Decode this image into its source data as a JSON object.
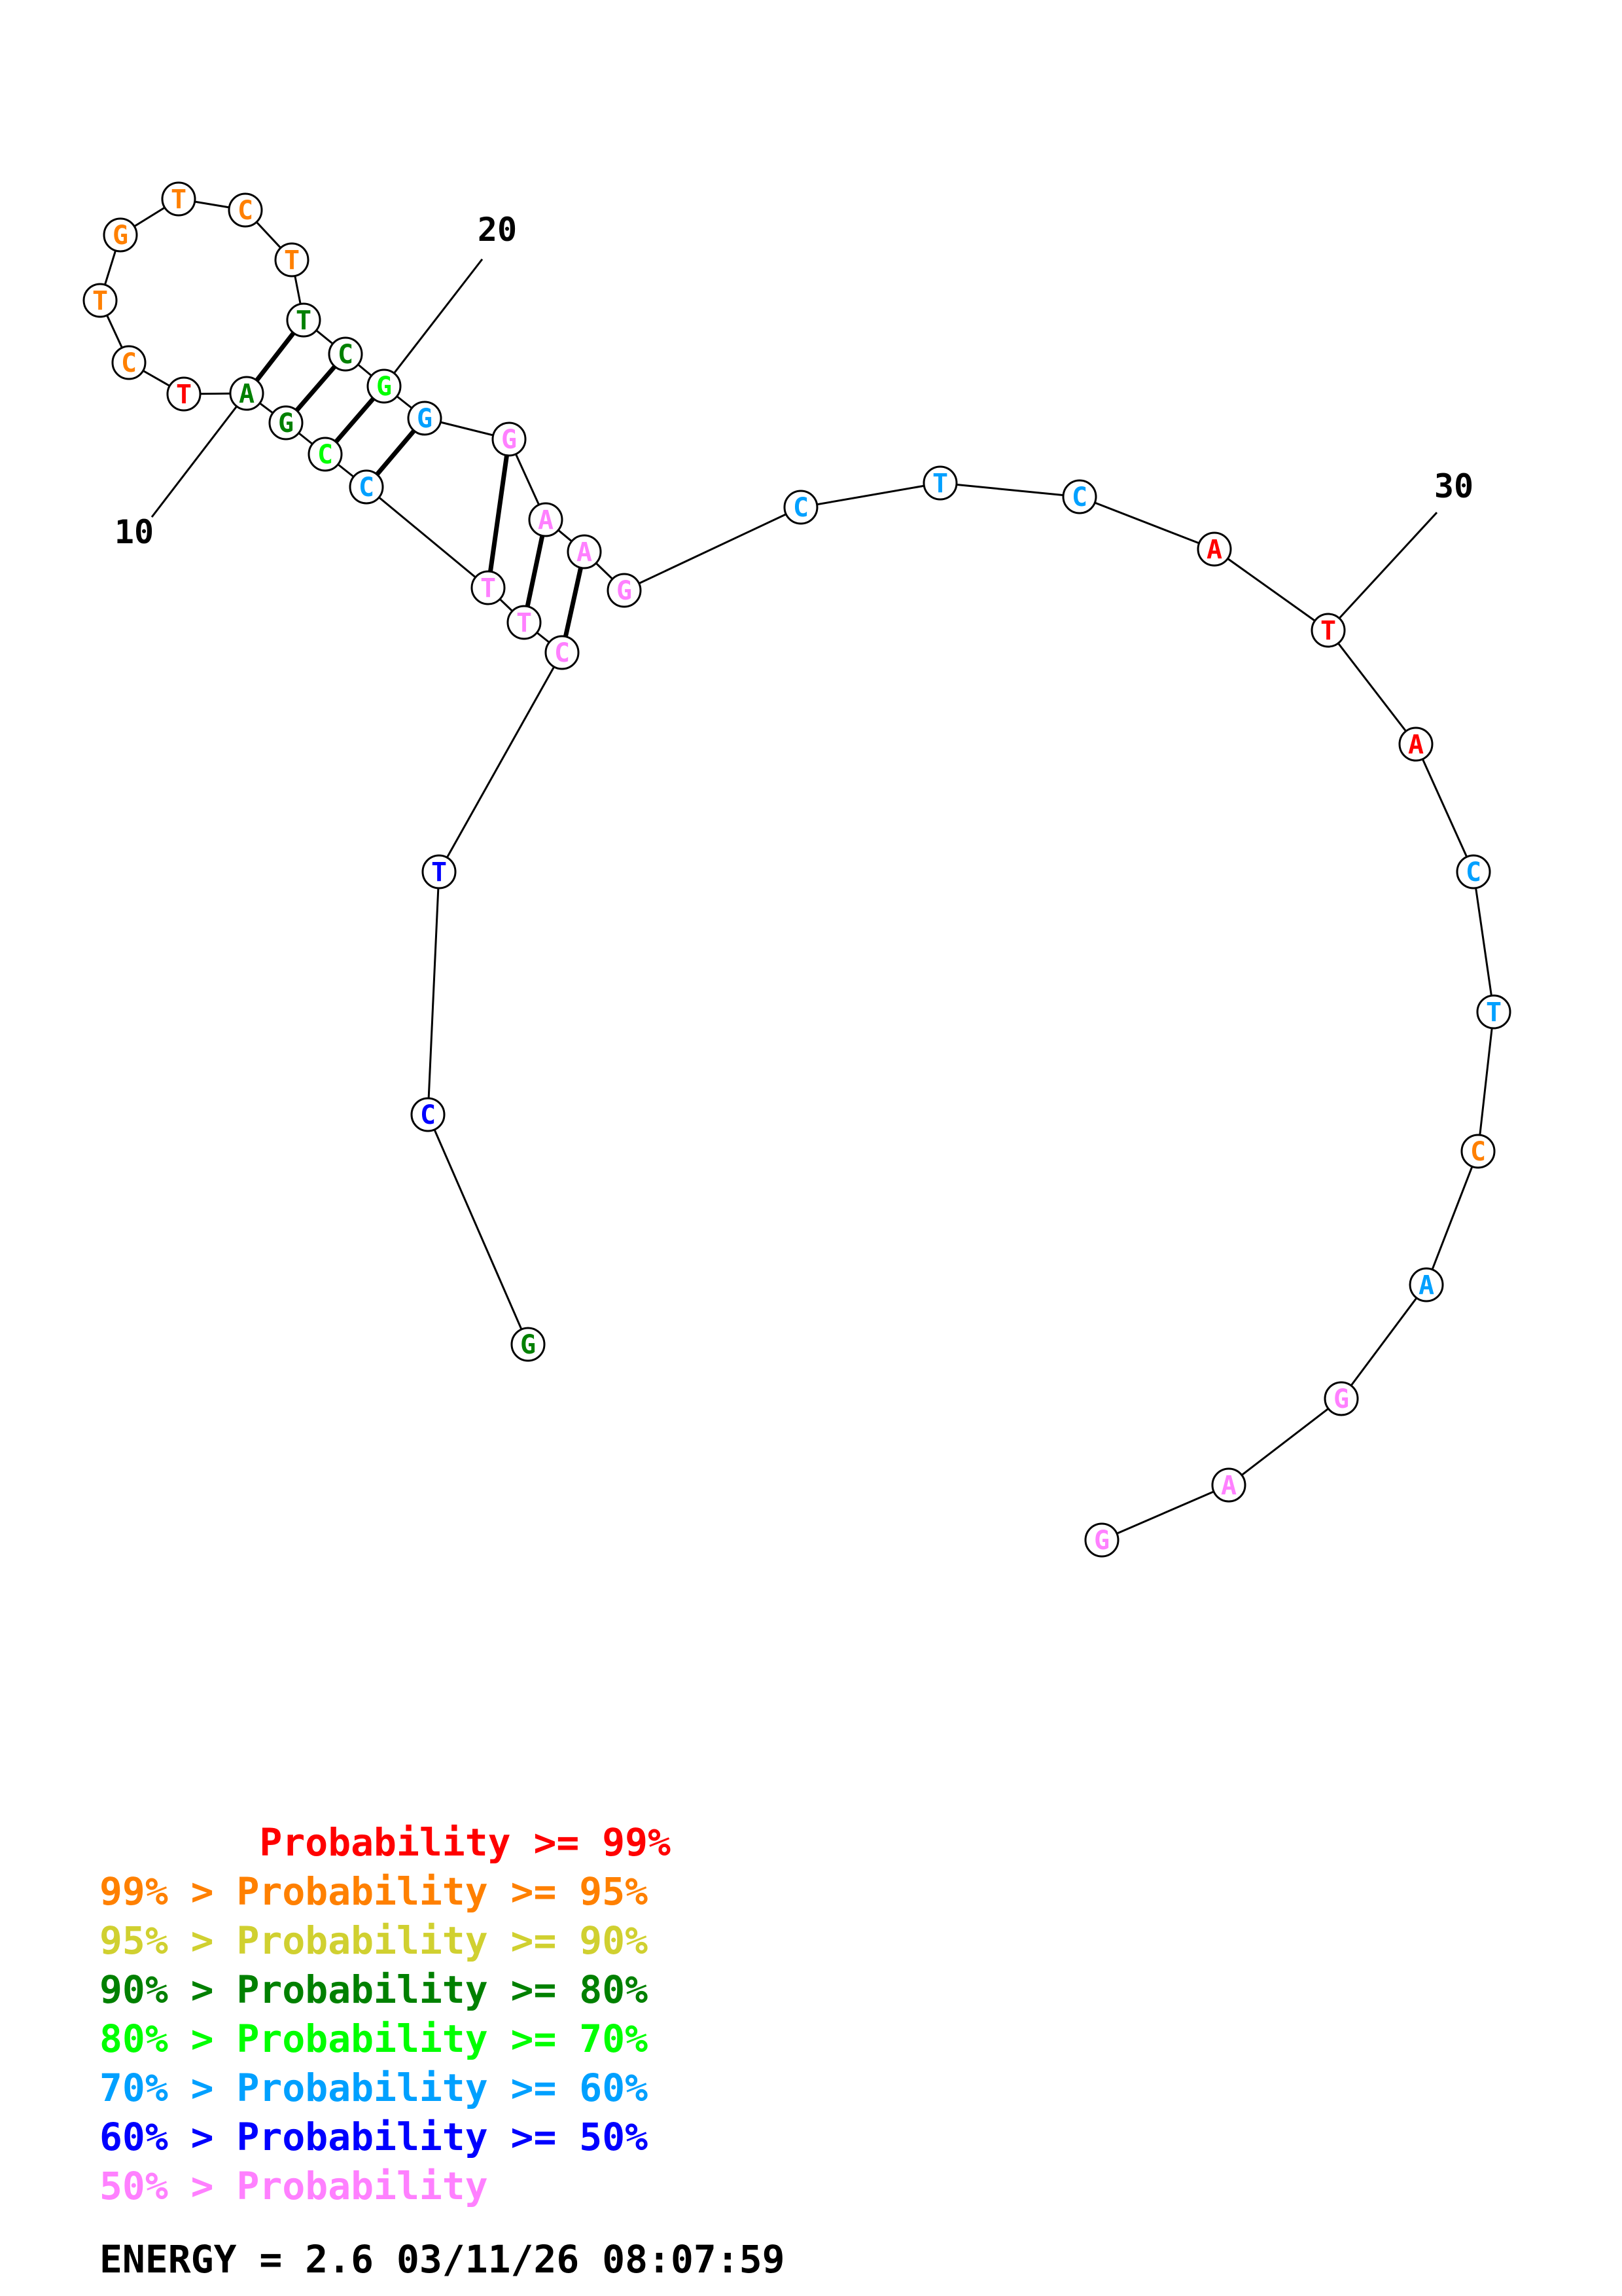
{
  "structure": {
    "bases": [
      {
        "n": 1,
        "letter": "G",
        "tier": 3
      },
      {
        "n": 2,
        "letter": "C",
        "tier": 6
      },
      {
        "n": 3,
        "letter": "T",
        "tier": 6
      },
      {
        "n": 4,
        "letter": "C",
        "tier": 7
      },
      {
        "n": 5,
        "letter": "T",
        "tier": 7
      },
      {
        "n": 6,
        "letter": "T",
        "tier": 7
      },
      {
        "n": 7,
        "letter": "C",
        "tier": 5
      },
      {
        "n": 8,
        "letter": "C",
        "tier": 4
      },
      {
        "n": 9,
        "letter": "G",
        "tier": 3
      },
      {
        "n": 10,
        "letter": "A",
        "tier": 3
      },
      {
        "n": 11,
        "letter": "T",
        "tier": 0
      },
      {
        "n": 12,
        "letter": "C",
        "tier": 1
      },
      {
        "n": 13,
        "letter": "T",
        "tier": 1
      },
      {
        "n": 14,
        "letter": "G",
        "tier": 1
      },
      {
        "n": 15,
        "letter": "T",
        "tier": 1
      },
      {
        "n": 16,
        "letter": "C",
        "tier": 1
      },
      {
        "n": 17,
        "letter": "T",
        "tier": 1
      },
      {
        "n": 18,
        "letter": "T",
        "tier": 3
      },
      {
        "n": 19,
        "letter": "C",
        "tier": 3
      },
      {
        "n": 20,
        "letter": "G",
        "tier": 4
      },
      {
        "n": 21,
        "letter": "G",
        "tier": 5
      },
      {
        "n": 22,
        "letter": "G",
        "tier": 7
      },
      {
        "n": 23,
        "letter": "A",
        "tier": 7
      },
      {
        "n": 24,
        "letter": "A",
        "tier": 7
      },
      {
        "n": 25,
        "letter": "G",
        "tier": 7
      },
      {
        "n": 26,
        "letter": "C",
        "tier": 5
      },
      {
        "n": 27,
        "letter": "T",
        "tier": 5
      },
      {
        "n": 28,
        "letter": "C",
        "tier": 5
      },
      {
        "n": 29,
        "letter": "A",
        "tier": 0
      },
      {
        "n": 30,
        "letter": "T",
        "tier": 0
      },
      {
        "n": 31,
        "letter": "A",
        "tier": 0
      },
      {
        "n": 32,
        "letter": "C",
        "tier": 5
      },
      {
        "n": 33,
        "letter": "T",
        "tier": 5
      },
      {
        "n": 34,
        "letter": "C",
        "tier": 1
      },
      {
        "n": 35,
        "letter": "A",
        "tier": 5
      },
      {
        "n": 36,
        "letter": "G",
        "tier": 7
      },
      {
        "n": 37,
        "letter": "A",
        "tier": 7
      },
      {
        "n": 38,
        "letter": "G",
        "tier": 7
      }
    ],
    "pairs": [
      [
        10,
        18
      ],
      [
        9,
        19
      ],
      [
        8,
        20
      ],
      [
        7,
        21
      ],
      [
        6,
        22
      ],
      [
        5,
        23
      ],
      [
        4,
        24
      ]
    ],
    "position_labels": [
      {
        "base": 10,
        "text": "10"
      },
      {
        "base": 20,
        "text": "20"
      },
      {
        "base": 30,
        "text": "30"
      }
    ]
  },
  "colors": {
    "tier_0": "#ff0000",
    "tier_1": "#ff8000",
    "tier_2": "#d0d030",
    "tier_3": "#008000",
    "tier_4": "#00ff00",
    "tier_5": "#00a0ff",
    "tier_6": "#0000ff",
    "tier_7": "#ff80ff"
  },
  "legend": [
    {
      "text": "       Probability >= 99%",
      "tier": 0
    },
    {
      "text": "99% > Probability >= 95%",
      "tier": 1
    },
    {
      "text": "95% > Probability >= 90%",
      "tier": 2
    },
    {
      "text": "90% > Probability >= 80%",
      "tier": 3
    },
    {
      "text": "80% > Probability >= 70%",
      "tier": 4
    },
    {
      "text": "70% > Probability >= 60%",
      "tier": 5
    },
    {
      "text": "60% > Probability >= 50%",
      "tier": 6
    },
    {
      "text": "50% > Probability",
      "tier": 7
    }
  ],
  "footer": {
    "energy": "ENERGY = 2.6  03/11/26 08:07:59"
  }
}
